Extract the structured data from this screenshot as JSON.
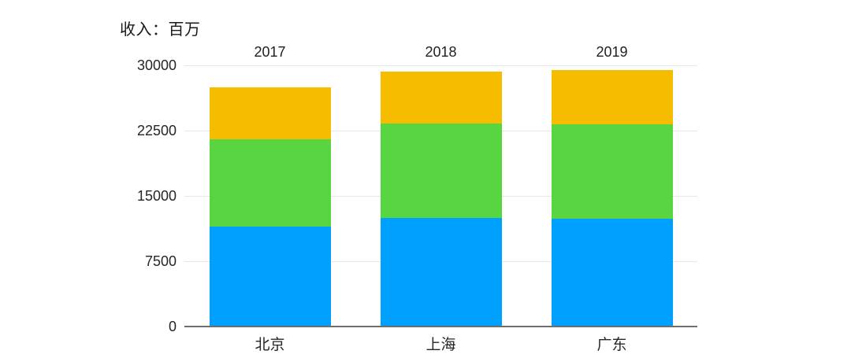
{
  "chart_title": "收入：百万",
  "chart_data": {
    "type": "bar",
    "stacked": true,
    "title": "收入：百万",
    "categories": [
      "北京",
      "上海",
      "广东"
    ],
    "bar_top_labels": [
      "2017",
      "2018",
      "2019"
    ],
    "series": [
      {
        "name": "segment-bottom-blue",
        "color": "#00A0FF",
        "values": [
          11500,
          12500,
          12400
        ]
      },
      {
        "name": "segment-middle-green",
        "color": "#5AD542",
        "values": [
          10000,
          10800,
          10800
        ]
      },
      {
        "name": "segment-top-yellow",
        "color": "#F6BC00",
        "values": [
          6000,
          6000,
          6300
        ]
      }
    ],
    "totals": [
      27500,
      29300,
      29500
    ],
    "y_ticks": [
      30000,
      22500,
      15000,
      7500,
      0
    ],
    "ylim": [
      0,
      30000
    ],
    "grid": true,
    "legend": "none",
    "colors": {
      "gridline": "#E7E7E7",
      "axis_line": "#6E6E6E",
      "text": "#262626",
      "background": "#FFFFFF"
    }
  }
}
